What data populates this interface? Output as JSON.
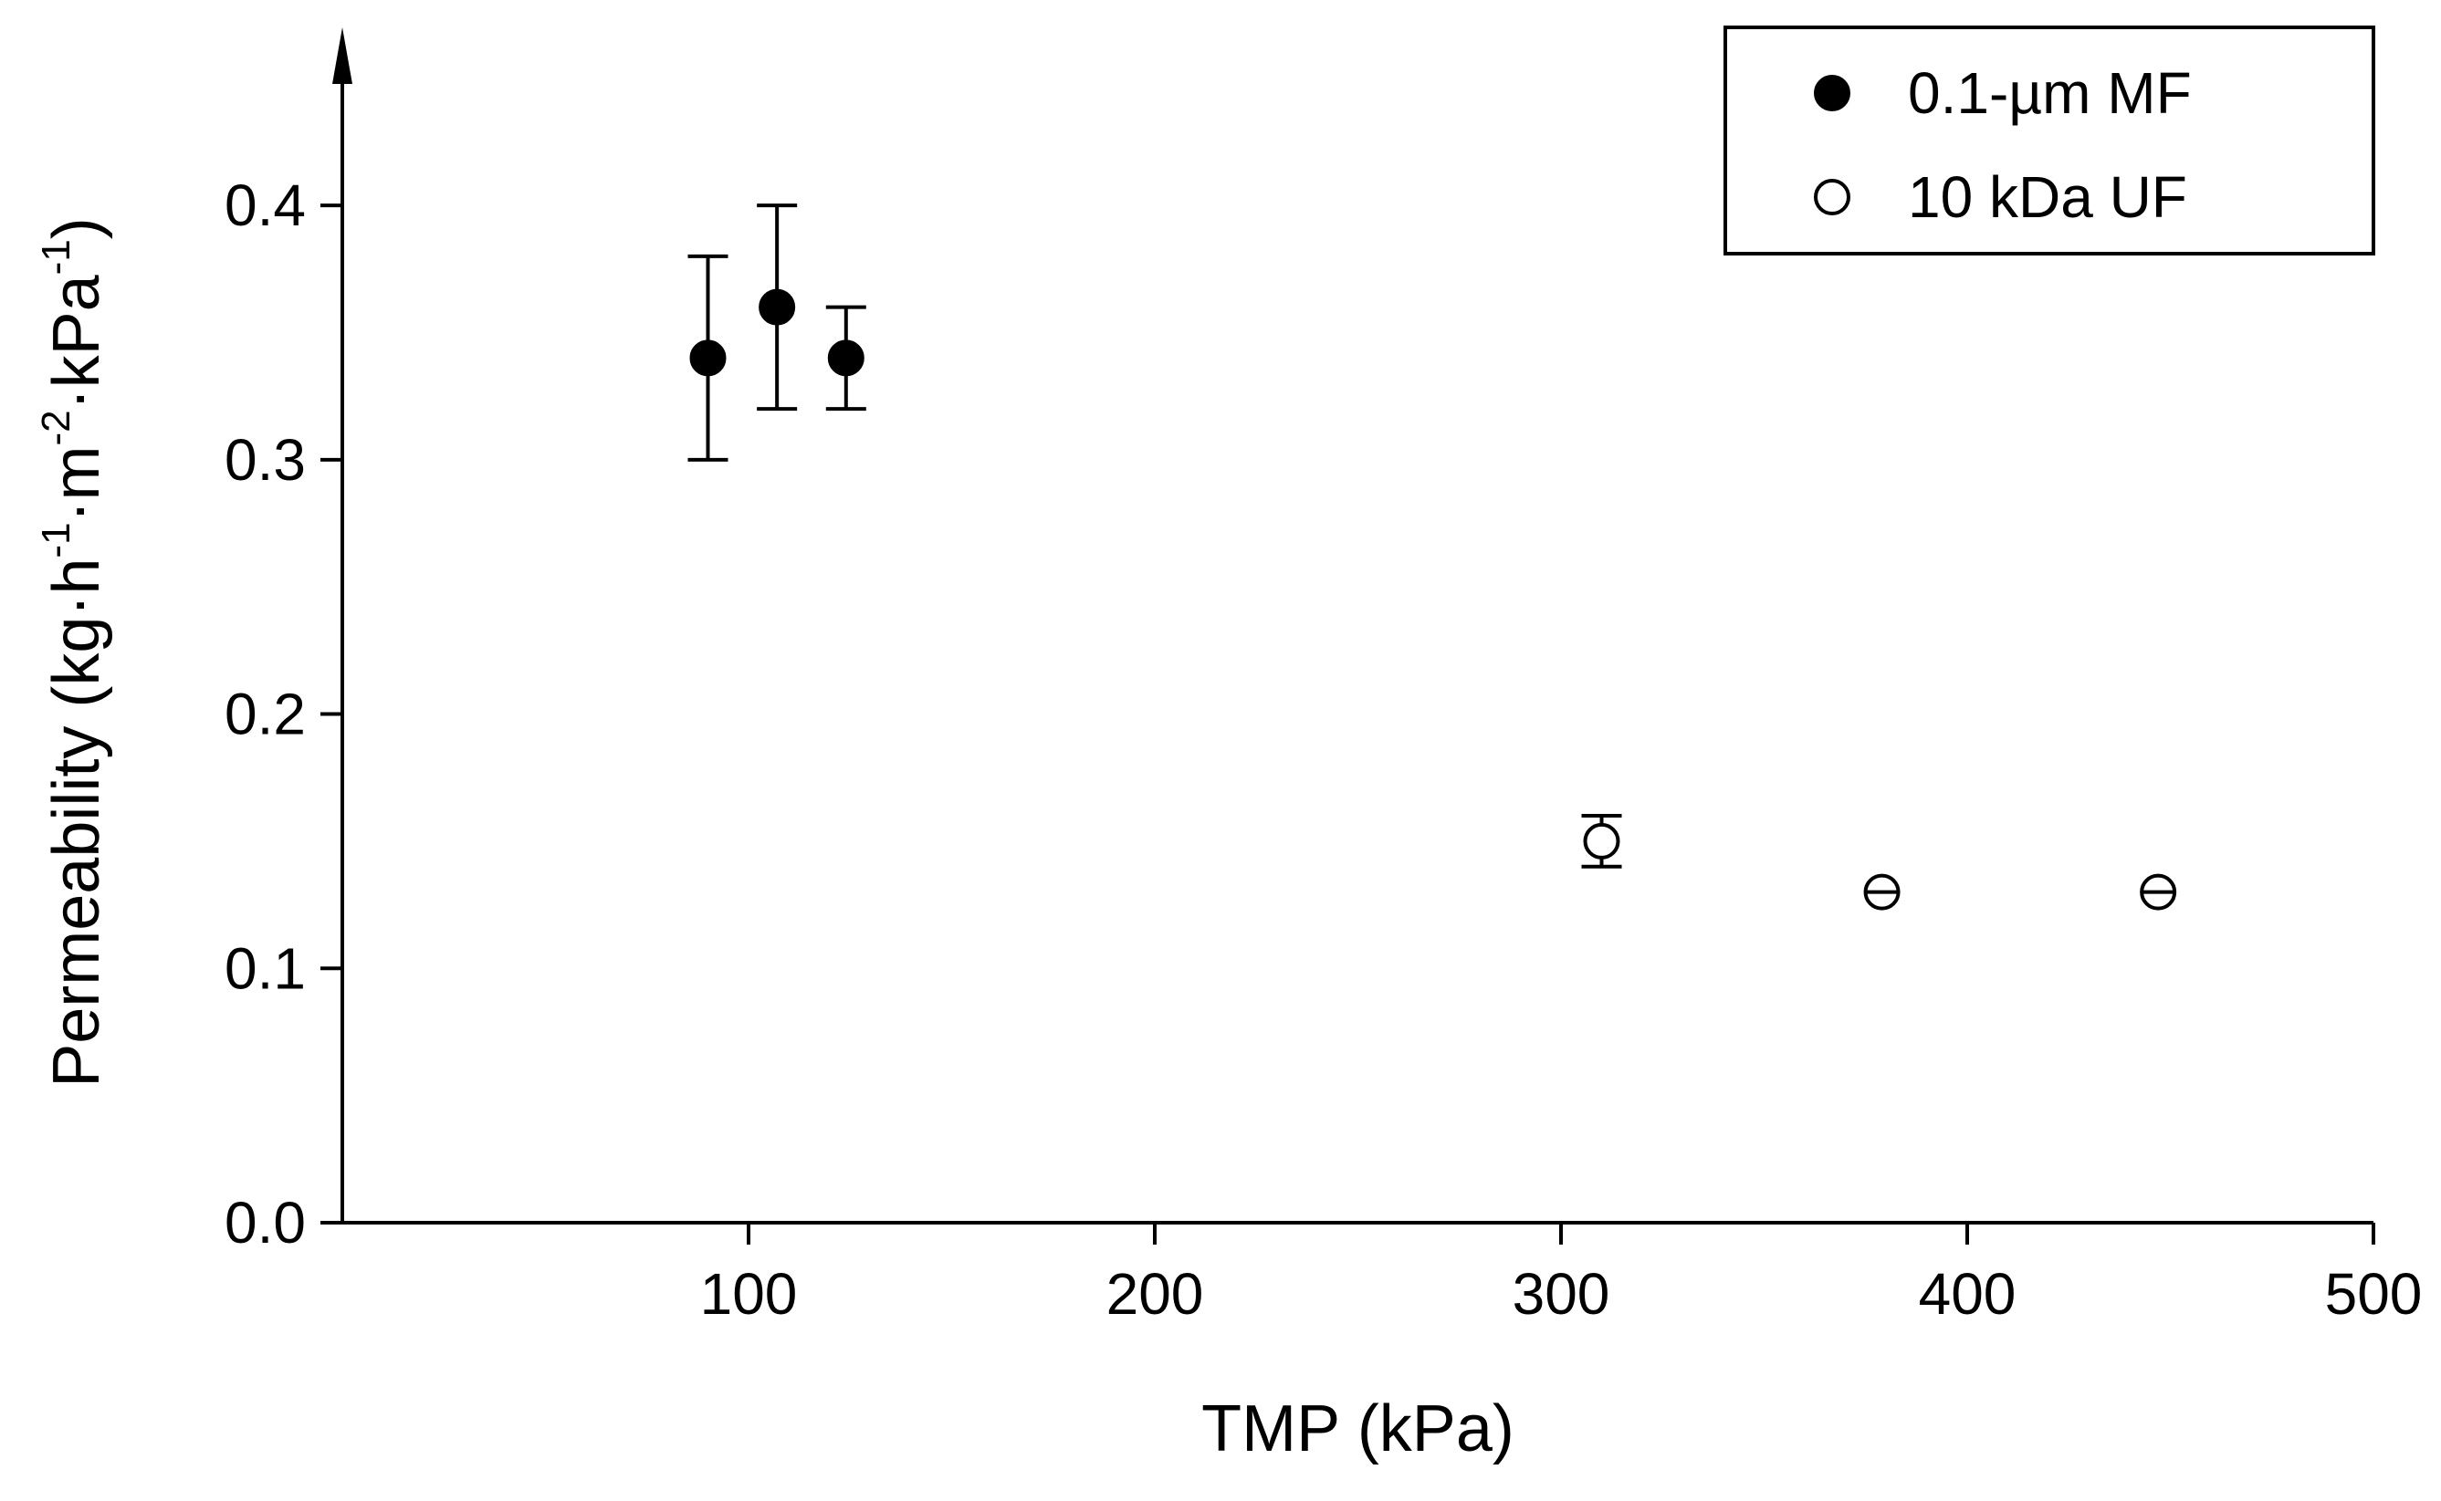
{
  "chart_data": {
    "type": "scatter",
    "xlabel": "TMP (kPa)",
    "ylabel": {
      "parts": [
        {
          "t": "Permeability (kg·h"
        },
        {
          "t": "-1",
          "sup": true
        },
        {
          "t": "·m"
        },
        {
          "t": "-2",
          "sup": true
        },
        {
          "t": "·kPa"
        },
        {
          "t": "-1",
          "sup": true
        },
        {
          "t": ")"
        }
      ]
    },
    "xlim": [
      0,
      500
    ],
    "ylim": [
      0,
      0.47
    ],
    "xticks": [
      {
        "value": 100,
        "label": "100"
      },
      {
        "value": 200,
        "label": "200"
      },
      {
        "value": 300,
        "label": "300"
      },
      {
        "value": 400,
        "label": "400"
      },
      {
        "value": 500,
        "label": "500"
      }
    ],
    "yticks": [
      {
        "value": 0.0,
        "label": "0.0"
      },
      {
        "value": 0.1,
        "label": "0.1"
      },
      {
        "value": 0.2,
        "label": "0.2"
      },
      {
        "value": 0.3,
        "label": "0.3"
      },
      {
        "value": 0.4,
        "label": "0.4"
      }
    ],
    "grid": false,
    "legend_position": "top-right",
    "series": [
      {
        "name": "0.1-µm MF",
        "marker": "filled-circle",
        "points": [
          {
            "x": 90,
            "y": 0.34,
            "err_low": 0.3,
            "err_high": 0.38
          },
          {
            "x": 107,
            "y": 0.36,
            "err_low": 0.32,
            "err_high": 0.4
          },
          {
            "x": 124,
            "y": 0.34,
            "err_low": 0.32,
            "err_high": 0.36
          }
        ]
      },
      {
        "name": "10 kDa UF",
        "marker": "open-circle",
        "points": [
          {
            "x": 310,
            "y": 0.15,
            "err_low": 0.14,
            "err_high": 0.16
          },
          {
            "x": 379,
            "y": 0.13,
            "err_low": 0.13,
            "err_high": 0.13
          },
          {
            "x": 447,
            "y": 0.13,
            "err_low": 0.13,
            "err_high": 0.13
          }
        ]
      }
    ]
  }
}
